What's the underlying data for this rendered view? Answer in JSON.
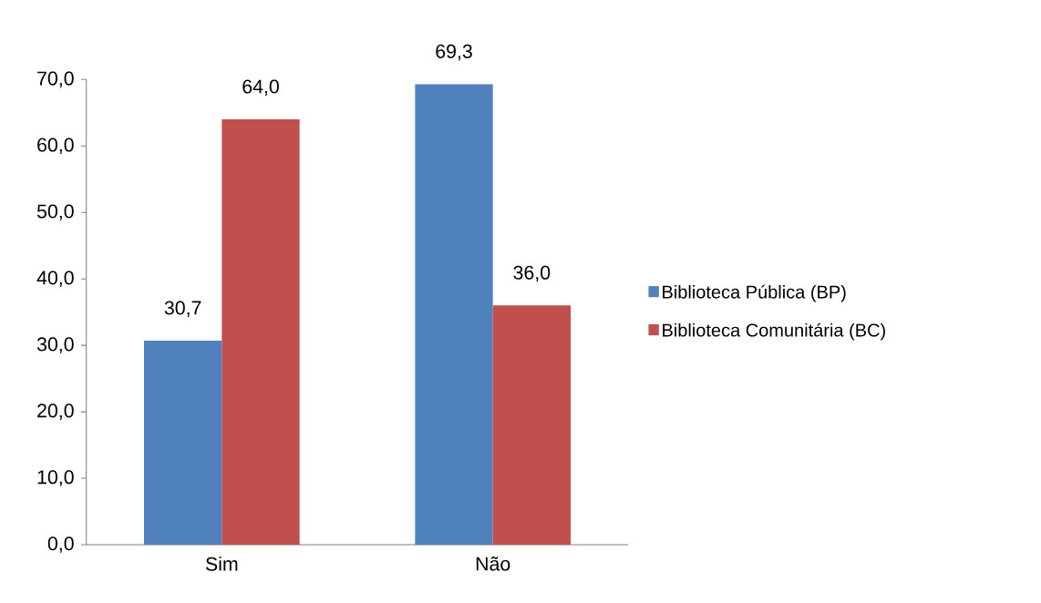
{
  "chart_data": {
    "type": "bar",
    "categories": [
      "Sim",
      "Não"
    ],
    "series": [
      {
        "name": "Biblioteca Pública (BP)",
        "color": "#4f81bd",
        "values": [
          30.7,
          69.3
        ],
        "value_labels": [
          "30,7",
          "69,3"
        ]
      },
      {
        "name": "Biblioteca Comunitária (BC)",
        "color": "#c0504d",
        "values": [
          64.0,
          36.0
        ],
        "value_labels": [
          "64,0",
          "36,0"
        ]
      }
    ],
    "ylim": [
      0,
      70
    ],
    "yticks": [
      {
        "value": 0,
        "label": "0,0"
      },
      {
        "value": 10,
        "label": "10,0"
      },
      {
        "value": 20,
        "label": "20,0"
      },
      {
        "value": 30,
        "label": "30,0"
      },
      {
        "value": 40,
        "label": "40,0"
      },
      {
        "value": 50,
        "label": "50,0"
      },
      {
        "value": 60,
        "label": "60,0"
      },
      {
        "value": 70,
        "label": "70,0"
      }
    ],
    "legend": "right",
    "grid": false
  }
}
